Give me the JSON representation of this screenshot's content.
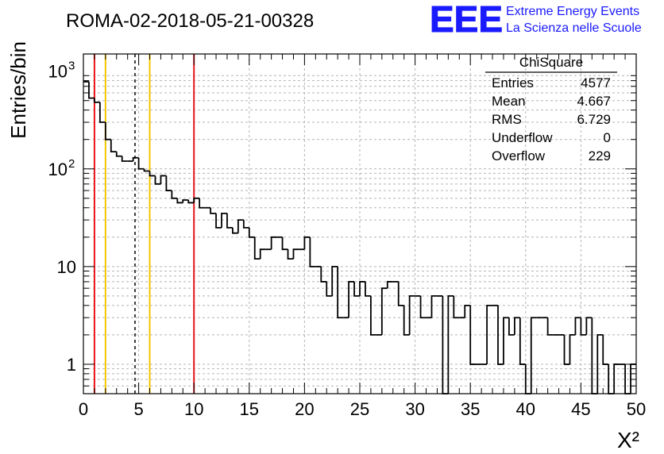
{
  "header": {
    "run_title": "ROMA-02-2018-05-21-00328",
    "logo_text": "EEE",
    "brand_line1": "Extreme Energy Events",
    "brand_line2": "La Scienza nelle Scuole"
  },
  "stats_box": {
    "title": "ChiSquare",
    "rows": [
      {
        "label": "Entries",
        "value": "4577"
      },
      {
        "label": "Mean",
        "value": "4.667"
      },
      {
        "label": "RMS",
        "value": "6.729"
      },
      {
        "label": "Underflow",
        "value": "0"
      },
      {
        "label": "Overflow",
        "value": "229"
      }
    ]
  },
  "colors": {
    "histogram": "#000000",
    "red_line": "#e8141b",
    "yellow_line": "#f5c400",
    "mean_line": "#000000",
    "logo": "#1a1aff",
    "grid": "#b4b4b4"
  },
  "chart_data": {
    "type": "bar",
    "histogram_style": "step",
    "xlabel": "X²",
    "ylabel": "Entries/bin",
    "xlim": [
      0,
      50
    ],
    "ylim": [
      0.5,
      1500
    ],
    "yscale": "log",
    "grid": true,
    "legend_position": "top-right",
    "bin_width": 0.5,
    "x_ticks": [
      "0",
      "5",
      "10",
      "15",
      "20",
      "25",
      "30",
      "35",
      "40",
      "45",
      "50"
    ],
    "y_ticks": [
      {
        "value": 1,
        "label": "1"
      },
      {
        "value": 10,
        "label": "10"
      },
      {
        "value": 100,
        "label": "10",
        "exp": "2"
      },
      {
        "value": 1000,
        "label": "10",
        "exp": "3"
      }
    ],
    "values": [
      780,
      530,
      480,
      300,
      200,
      150,
      135,
      120,
      120,
      130,
      100,
      95,
      85,
      70,
      85,
      60,
      50,
      45,
      48,
      45,
      50,
      40,
      40,
      35,
      25,
      35,
      25,
      22,
      30,
      25,
      20,
      12,
      15,
      15,
      20,
      20,
      15,
      12,
      15,
      15,
      20,
      10,
      10,
      7,
      5,
      10,
      3,
      3,
      7,
      5,
      7,
      5,
      2,
      2,
      6,
      7,
      7,
      4,
      2,
      5,
      5,
      3,
      3,
      5,
      5,
      0,
      5,
      3,
      3,
      4,
      1,
      1,
      1,
      4,
      4,
      1,
      3,
      2,
      3,
      1,
      0,
      3,
      3,
      3,
      2,
      2,
      2,
      1,
      2,
      3,
      2,
      3,
      0,
      2,
      1,
      0,
      1,
      1,
      0,
      1
    ],
    "vertical_lines": [
      {
        "x": 1,
        "style": "red"
      },
      {
        "x": 2,
        "style": "yellow"
      },
      {
        "x": 4.667,
        "style": "mean"
      },
      {
        "x": 6,
        "style": "yellow"
      },
      {
        "x": 10,
        "style": "red"
      }
    ]
  }
}
